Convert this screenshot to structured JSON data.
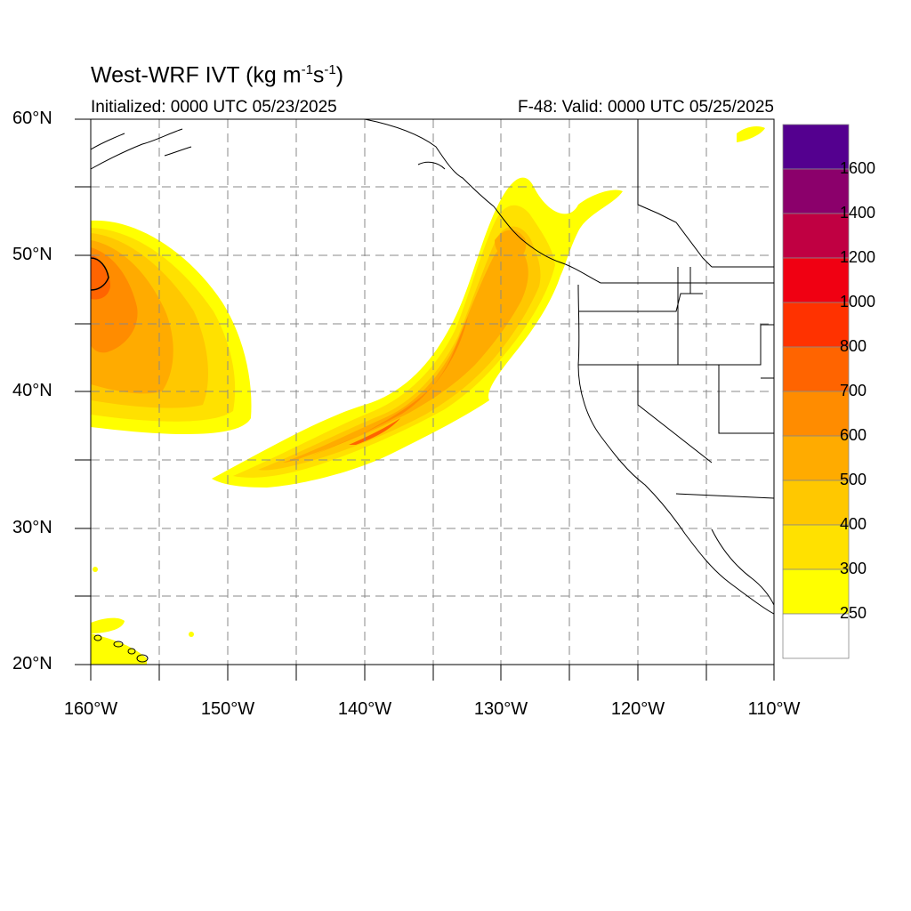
{
  "title": {
    "main_text": "West-WRF IVT (kg m",
    "sup1": "-1",
    "mid": "s",
    "sup2": "-1",
    "close": ")"
  },
  "init_text": "Initialized: 0000 UTC 05/23/2025",
  "valid_text": "F-48: Valid: 0000 UTC 05/25/2025",
  "lat_labels": [
    "60°N",
    "50°N",
    "40°N",
    "30°N",
    "20°N"
  ],
  "lon_labels": [
    "160°W",
    "150°W",
    "140°W",
    "130°W",
    "120°W",
    "110°W"
  ],
  "colorbar": {
    "labels": [
      "1600",
      "1400",
      "1200",
      "1000",
      "800",
      "700",
      "600",
      "500",
      "400",
      "300",
      "250"
    ],
    "colors": [
      "#54008f",
      "#8b006b",
      "#c00042",
      "#f00012",
      "#ff3200",
      "#ff6400",
      "#ff8c00",
      "#ffab00",
      "#ffc800",
      "#ffe100",
      "#ffff00",
      "#ffffff"
    ]
  },
  "chart_data": {
    "type": "heatmap",
    "variable": "IVT",
    "units": "kg m-1 s-1",
    "xlim": [
      -160,
      -110
    ],
    "ylim": [
      20,
      60
    ],
    "grid": true,
    "levels": [
      250,
      300,
      400,
      500,
      600,
      700,
      800,
      1000,
      1200,
      1400,
      1600
    ]
  }
}
